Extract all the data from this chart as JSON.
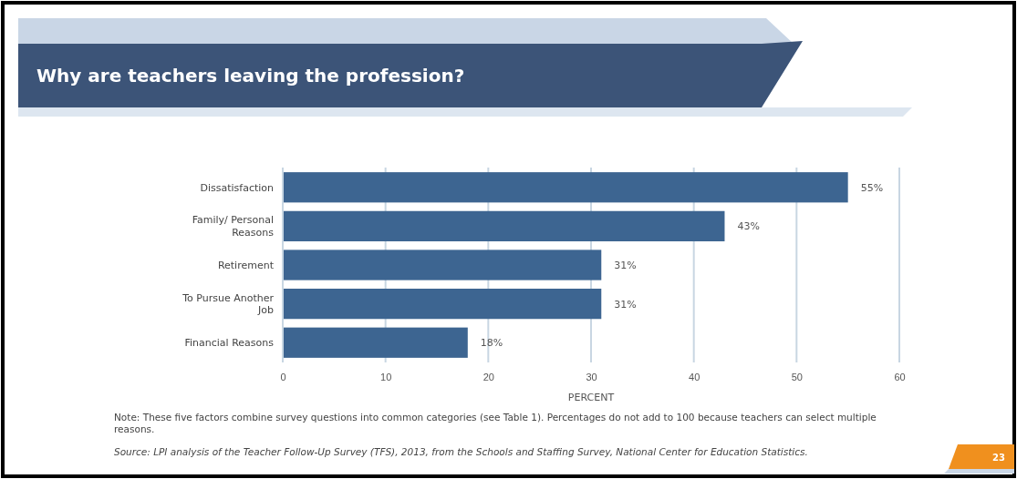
{
  "chart_data": {
    "type": "bar",
    "orientation": "horizontal",
    "title": "Why are teachers leaving the profession?",
    "categories": [
      "Dissatisfaction",
      "Family/ Personal Reasons",
      "Retirement",
      "To Pursue Another Job",
      "Financial Reasons"
    ],
    "values": [
      55,
      43,
      31,
      31,
      18
    ],
    "color": "#3d6591",
    "value_labels": [
      "55%",
      "43%",
      "31%",
      "31%",
      "18%"
    ],
    "xlim": [
      0,
      60
    ],
    "xticks": [
      0,
      10,
      20,
      30,
      40,
      50,
      60
    ],
    "xlabel": "PERCENT",
    "grid": "x",
    "annotations": [
      "Note: These five factors combine survey questions into common categories (see Table 1). Percentages do not add to 100 because teachers can select multiple reasons.",
      "Source: LPI analysis of the Teacher Follow-Up Survey (TFS), 2013, from the Schools and Staffing Survey, National Center for Education Statistics.",
      "23"
    ]
  }
}
